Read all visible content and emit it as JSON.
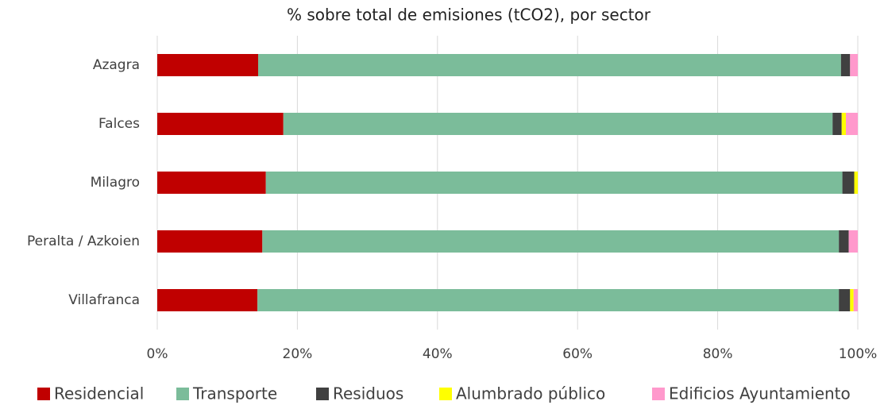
{
  "chart_data": {
    "type": "stacked_bar_horizontal",
    "title": "% sobre total de emisiones (tCO2), por sector",
    "categories": [
      "Azagra",
      "Falces",
      "Milagro",
      "Peralta / Azkoien",
      "Villafranca"
    ],
    "series": [
      {
        "name": "Residencial",
        "color": "#c00000",
        "values": [
          14.4,
          18.0,
          15.5,
          15.0,
          14.3
        ]
      },
      {
        "name": "Transporte",
        "color": "#7bbc9a",
        "values": [
          83.2,
          78.4,
          82.3,
          82.3,
          83.0
        ]
      },
      {
        "name": "Residuos",
        "color": "#404040",
        "values": [
          1.3,
          1.3,
          1.7,
          1.4,
          1.6
        ]
      },
      {
        "name": "Alumbrado público",
        "color": "#ffff00",
        "values": [
          0,
          0.6,
          0.5,
          0,
          0.5
        ]
      },
      {
        "name": "Edificios Ayuntamiento",
        "color": "#ff99cc",
        "values": [
          1.1,
          1.7,
          0,
          1.3,
          0.6
        ]
      }
    ],
    "xlim": [
      0,
      100
    ],
    "xticks": [
      {
        "value": 0,
        "label": "0%"
      },
      {
        "value": 20,
        "label": "20%"
      },
      {
        "value": 40,
        "label": "40%"
      },
      {
        "value": 60,
        "label": "60%"
      },
      {
        "value": 80,
        "label": "80%"
      },
      {
        "value": 100,
        "label": "100%"
      }
    ],
    "grid": true,
    "legend": "bottom"
  }
}
